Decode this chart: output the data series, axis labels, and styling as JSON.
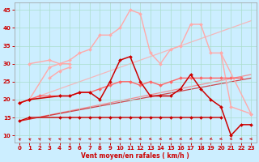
{
  "background_color": "#cceeff",
  "grid_color": "#aaddcc",
  "xlabel": "Vent moyen/en rafales ( km/h )",
  "xlabel_color": "#cc0000",
  "tick_color": "#cc0000",
  "xlim": [
    -0.5,
    23.5
  ],
  "ylim": [
    8,
    47
  ],
  "yticks": [
    10,
    15,
    20,
    25,
    30,
    35,
    40,
    45
  ],
  "xticks": [
    0,
    1,
    2,
    3,
    4,
    5,
    6,
    7,
    8,
    9,
    10,
    11,
    12,
    13,
    14,
    15,
    16,
    17,
    18,
    19,
    20,
    21,
    22,
    23
  ],
  "series": [
    {
      "name": "light_pink_upper",
      "x": [
        0,
        1,
        3,
        4,
        5,
        6,
        7,
        8,
        9,
        10,
        11,
        12,
        13,
        14,
        15,
        16,
        17,
        18,
        19,
        20,
        21,
        23
      ],
      "y": [
        19,
        20,
        29,
        30,
        31,
        33,
        34,
        38,
        38,
        40,
        45,
        44,
        33,
        30,
        34,
        35,
        41,
        41,
        33,
        33,
        18,
        16
      ],
      "color": "#ffaaaa",
      "marker": "D",
      "ms": 2.0,
      "lw": 1.0,
      "alpha": 1.0,
      "zorder": 2
    },
    {
      "name": "light_pink_mid",
      "x": [
        1,
        3,
        4,
        5
      ],
      "y": [
        30,
        31,
        30,
        30
      ],
      "color": "#ffaaaa",
      "marker": "D",
      "ms": 2.0,
      "lw": 1.0,
      "alpha": 1.0,
      "zorder": 2
    },
    {
      "name": "light_pink_lower_segment",
      "x": [
        3,
        4,
        5
      ],
      "y": [
        26,
        28,
        29
      ],
      "color": "#ffaaaa",
      "marker": "D",
      "ms": 2.0,
      "lw": 1.0,
      "alpha": 1.0,
      "zorder": 2
    },
    {
      "name": "medium_pink_trend",
      "x": [
        0,
        23
      ],
      "y": [
        19,
        42
      ],
      "color": "#ffaaaa",
      "marker": null,
      "ms": 0,
      "lw": 0.9,
      "alpha": 0.8,
      "zorder": 1
    },
    {
      "name": "medium_red_rising",
      "x": [
        0,
        1,
        2,
        3,
        4,
        5,
        6,
        7,
        8,
        9,
        10,
        11,
        12,
        13,
        14,
        15,
        16,
        17,
        18,
        19,
        20,
        21,
        22
      ],
      "y": [
        19,
        20,
        21,
        21,
        21,
        21,
        22,
        22,
        23,
        24,
        25,
        25,
        24,
        25,
        24,
        25,
        26,
        26,
        26,
        26,
        26,
        26,
        26
      ],
      "color": "#ff6666",
      "marker": "D",
      "ms": 2.0,
      "lw": 1.0,
      "alpha": 1.0,
      "zorder": 3
    },
    {
      "name": "medium_red_trend",
      "x": [
        0,
        23
      ],
      "y": [
        14,
        27
      ],
      "color": "#ff6666",
      "marker": null,
      "ms": 0,
      "lw": 0.9,
      "alpha": 0.7,
      "zorder": 1
    },
    {
      "name": "dark_red_flat",
      "x": [
        0,
        1,
        4,
        5,
        6,
        7,
        8,
        9,
        10,
        11,
        12,
        13,
        14,
        15,
        16,
        17,
        18,
        19,
        20
      ],
      "y": [
        14,
        15,
        15,
        15,
        15,
        15,
        15,
        15,
        15,
        15,
        15,
        15,
        15,
        15,
        15,
        15,
        15,
        15,
        15
      ],
      "color": "#cc0000",
      "marker": "D",
      "ms": 2.0,
      "lw": 1.0,
      "alpha": 1.0,
      "zorder": 4
    },
    {
      "name": "dark_red_main",
      "x": [
        0,
        1,
        4,
        5,
        6,
        7,
        8,
        9,
        10,
        11,
        12,
        13,
        14,
        15,
        16,
        17,
        18,
        19,
        20,
        21,
        22,
        23
      ],
      "y": [
        19,
        20,
        21,
        21,
        22,
        22,
        20,
        25,
        31,
        32,
        25,
        21,
        21,
        21,
        23,
        27,
        23,
        20,
        18,
        10,
        13,
        13
      ],
      "color": "#cc0000",
      "marker": "D",
      "ms": 2.0,
      "lw": 1.1,
      "alpha": 1.0,
      "zorder": 4
    },
    {
      "name": "dark_red_trend",
      "x": [
        0,
        23
      ],
      "y": [
        14,
        26
      ],
      "color": "#cc0000",
      "marker": null,
      "ms": 0,
      "lw": 0.9,
      "alpha": 0.7,
      "zorder": 1
    },
    {
      "name": "pink_segment_top",
      "x": [
        20,
        23
      ],
      "y": [
        33,
        16
      ],
      "color": "#ffaaaa",
      "marker": "D",
      "ms": 2.0,
      "lw": 1.0,
      "alpha": 1.0,
      "zorder": 2
    }
  ],
  "wind_arrows": {
    "x": [
      0,
      1,
      2,
      3,
      4,
      5,
      6,
      7,
      8,
      9,
      10,
      11,
      12,
      13,
      14,
      15,
      16,
      17,
      18,
      19,
      20,
      21,
      22,
      23
    ],
    "angles": [
      215,
      220,
      225,
      225,
      230,
      235,
      240,
      245,
      260,
      270,
      275,
      280,
      285,
      290,
      295,
      300,
      305,
      310,
      315,
      305,
      295,
      285,
      275,
      270
    ]
  }
}
